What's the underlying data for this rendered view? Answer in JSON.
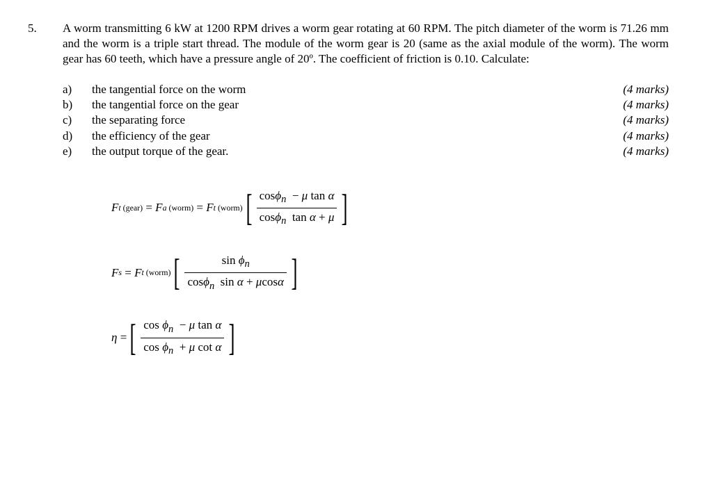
{
  "problem": {
    "number": "5.",
    "intro": "A worm transmitting 6 kW at 1200 RPM drives a worm gear rotating at 60 RPM. The pitch diameter of the worm is 71.26 mm and the worm is a triple start thread. The module of the worm gear is 20 (same as the axial module of the worm). The worm gear has 60 teeth, which have a pressure angle of 20º. The coefficient of friction is 0.10. Calculate:"
  },
  "subs": [
    {
      "letter": "a)",
      "text": "the tangential force on the worm",
      "marks": "(4 marks)"
    },
    {
      "letter": "b)",
      "text": "the tangential force on the gear",
      "marks": "(4 marks)"
    },
    {
      "letter": "c)",
      "text": "the separating force",
      "marks": "(4 marks)"
    },
    {
      "letter": "d)",
      "text": "the efficiency of the gear",
      "marks": "(4 marks)"
    },
    {
      "letter": "e)",
      "text": "the output torque of the gear.",
      "marks": "(4 marks)"
    }
  ],
  "symbols": {
    "F": "F",
    "t": "t",
    "gear": "gear",
    "a": "a",
    "worm": "worm",
    "cos": "cos",
    "sin": "sin",
    "tan": "tan",
    "cot": "cot",
    "phi": "ϕ",
    "n": "n",
    "mu": "μ",
    "alpha": "α",
    "eta": "η",
    "s": "s",
    "eq": "=",
    "minus": "−",
    "plus": "+"
  }
}
